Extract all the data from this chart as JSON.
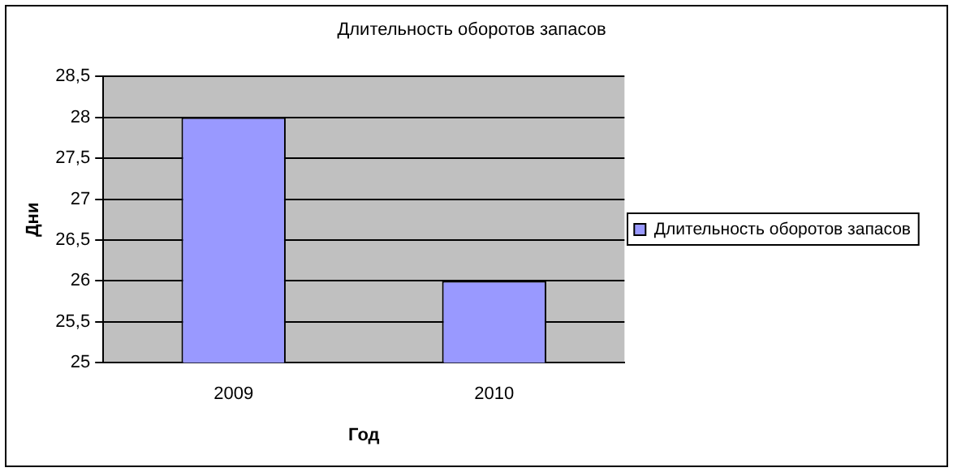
{
  "chart_data": {
    "type": "bar",
    "title": "Длительность оборотов запасов",
    "xlabel": "Год",
    "ylabel": "Дни",
    "categories": [
      "2009",
      "2010"
    ],
    "series": [
      {
        "name": "Длительность оборотов запасов",
        "color": "#9999ff",
        "values": [
          28,
          26
        ]
      }
    ],
    "ylim": [
      25,
      28.5
    ],
    "yticks": [
      25,
      {
        "value": 25.5,
        "label": "25,5"
      },
      26,
      {
        "value": 26.5,
        "label": "26,5"
      },
      27,
      {
        "value": 27.5,
        "label": "27,5"
      },
      28,
      {
        "value": 28.5,
        "label": "28,5"
      }
    ],
    "grid": "y",
    "legend": "right"
  }
}
